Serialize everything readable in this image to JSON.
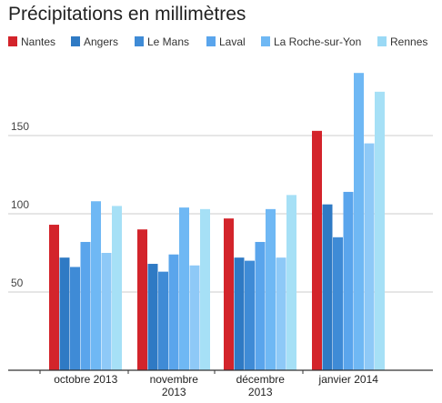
{
  "chart_data": {
    "type": "bar",
    "title": "Précipitations en millimètres",
    "categories": [
      [
        "octobre 2013"
      ],
      [
        "novembre",
        "2013"
      ],
      [
        "décembre",
        "2013"
      ],
      [
        "janvier 2014"
      ]
    ],
    "series": [
      {
        "name": "Nantes",
        "color": "#d3242b",
        "values": [
          93,
          90,
          97,
          153
        ]
      },
      {
        "name": "Angers",
        "color": "#2f7ac4",
        "values": [
          72,
          68,
          72,
          106
        ]
      },
      {
        "name": "Le Mans",
        "color": "#3f8bd6",
        "values": [
          66,
          63,
          70,
          85
        ]
      },
      {
        "name": "Laval",
        "color": "#5aa5ec",
        "values": [
          82,
          74,
          82,
          114
        ]
      },
      {
        "name": "La Roche-sur-Yon",
        "color": "#6fb8f4",
        "values": [
          108,
          104,
          103,
          190
        ]
      },
      {
        "name": "Rennes",
        "color": "#9ad9f5",
        "values": [
          75,
          67,
          72,
          145
        ]
      }
    ],
    "extra_series_values": {
      "Rennes_top": [
        105,
        103,
        112,
        178
      ]
    },
    "yticks": [
      50,
      100,
      150
    ],
    "ylim": [
      0,
      200
    ],
    "grid": true,
    "legend": "top"
  }
}
